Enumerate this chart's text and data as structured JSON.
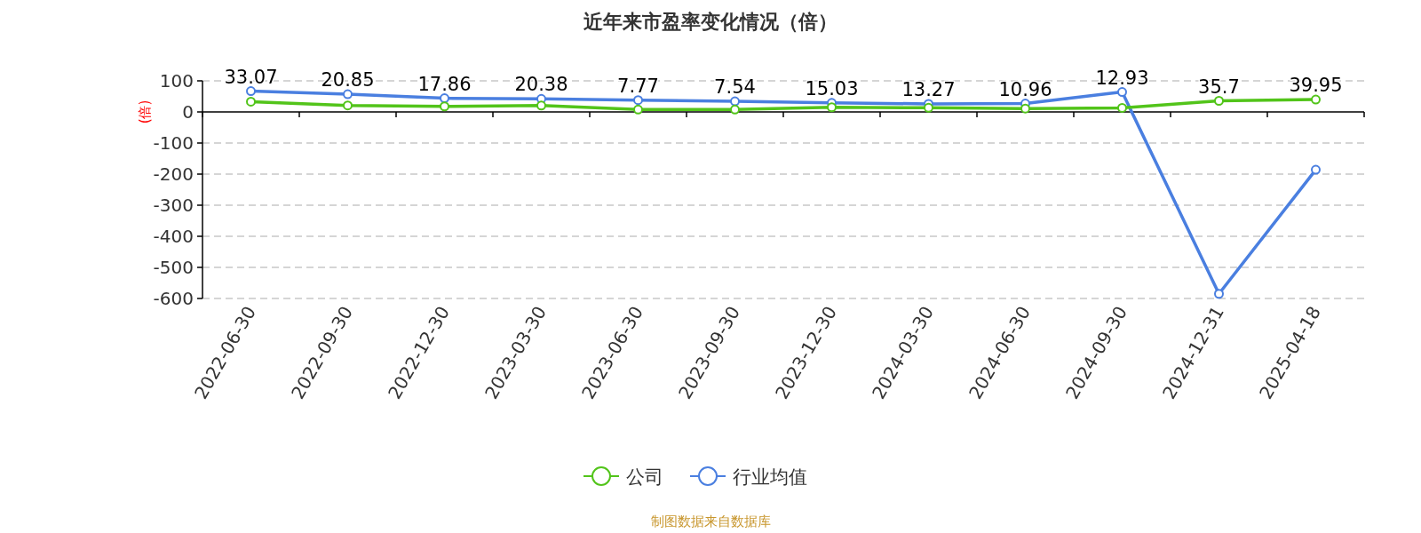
{
  "chart_data": {
    "type": "line",
    "title": "近年来市盈率变化情况（倍）",
    "ylabel": "(倍)",
    "categories": [
      "2022-06-30",
      "2022-09-30",
      "2022-12-30",
      "2023-03-30",
      "2023-06-30",
      "2023-09-30",
      "2023-12-30",
      "2024-03-30",
      "2024-06-30",
      "2024-09-30",
      "2024-12-31",
      "2025-04-18"
    ],
    "series": [
      {
        "name": "公司",
        "color": "#52c41a",
        "values": [
          33.07,
          20.85,
          17.86,
          20.38,
          7.77,
          7.54,
          15.03,
          13.27,
          10.96,
          12.93,
          35.7,
          39.95
        ],
        "data_labels": true
      },
      {
        "name": "行业均值",
        "color": "#4a7fe0",
        "values": [
          67,
          57,
          44,
          42,
          38,
          34,
          29,
          26,
          27,
          64,
          -585,
          -186
        ]
      }
    ],
    "ylim": [
      -600,
      100
    ],
    "yticks": [
      -600,
      -500,
      -400,
      -300,
      -200,
      -100,
      0,
      100
    ],
    "grid": "y",
    "legend": "bottom",
    "marker": "circle",
    "line_style": "solid",
    "annotations": [
      "制图数据来自数据库"
    ]
  }
}
